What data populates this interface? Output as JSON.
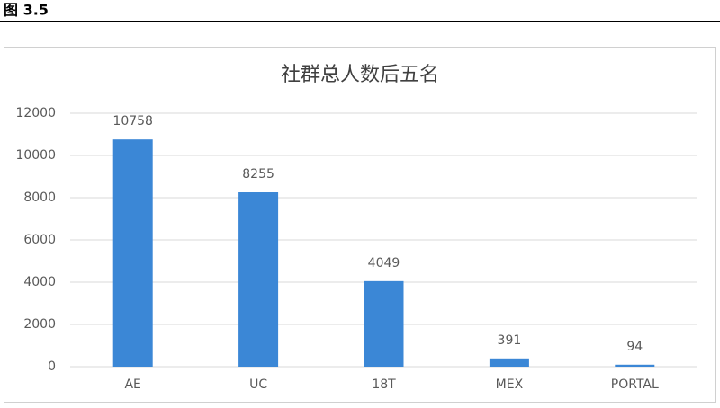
{
  "figure_label": "图 3.5",
  "chart_data": {
    "type": "bar",
    "title": "社群总人数后五名",
    "categories": [
      "AE",
      "UC",
      "18T",
      "MEX",
      "PORTAL"
    ],
    "values": [
      10758,
      8255,
      4049,
      391,
      94
    ],
    "color": "#3b87d6",
    "ylim": [
      0,
      12000
    ],
    "yticks": [
      0,
      2000,
      4000,
      6000,
      8000,
      10000,
      12000
    ],
    "grid": true
  }
}
